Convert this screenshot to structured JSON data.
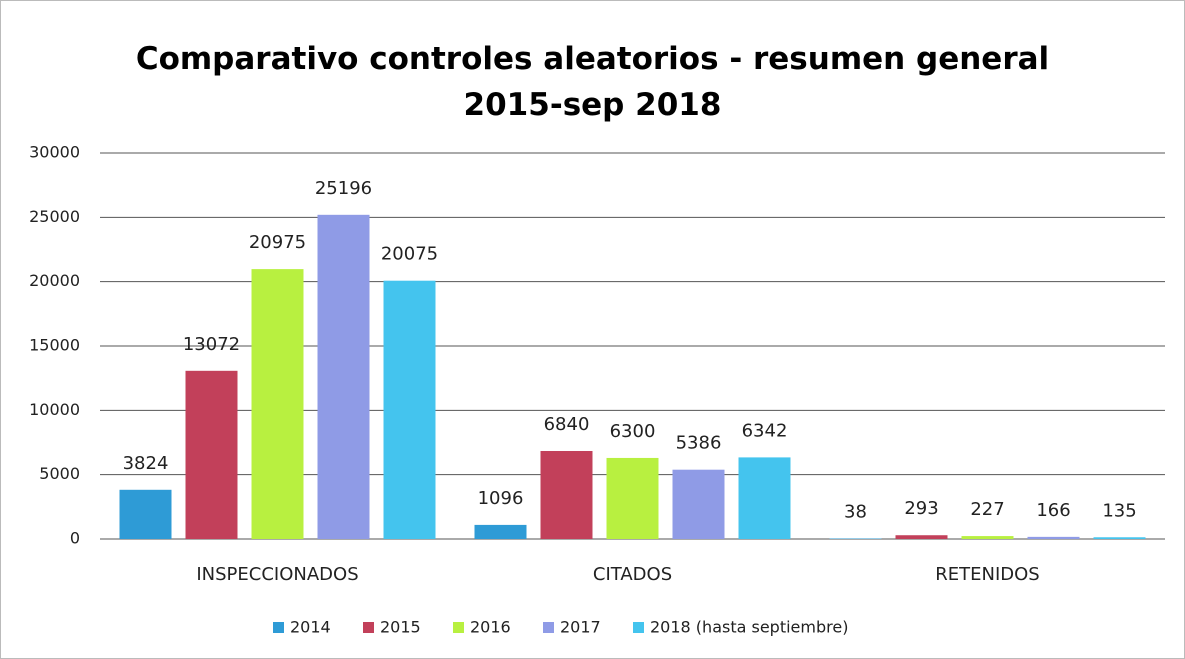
{
  "chart_data": {
    "type": "bar",
    "title": "Comparativo controles aleatorios - resumen general 2015-sep 2018",
    "categories": [
      "INSPECCIONADOS",
      "CITADOS",
      "RETENIDOS"
    ],
    "series": [
      {
        "name": "2014",
        "color": "#2e9bd6",
        "values": [
          3824,
          1096,
          38
        ]
      },
      {
        "name": "2015",
        "color": "#c2405a",
        "values": [
          13072,
          6840,
          293
        ]
      },
      {
        "name": "2016",
        "color": "#b8f040",
        "values": [
          20975,
          6300,
          227
        ]
      },
      {
        "name": "2017",
        "color": "#8f9be6",
        "values": [
          25196,
          5386,
          166
        ]
      },
      {
        "name": "2018 (hasta septiembre)",
        "color": "#44c4ee",
        "values": [
          20075,
          6342,
          135
        ]
      }
    ],
    "ylim": [
      0,
      30000
    ],
    "yticks": [
      0,
      5000,
      10000,
      15000,
      20000,
      25000,
      30000
    ],
    "grid": true,
    "legend": "bottom"
  }
}
